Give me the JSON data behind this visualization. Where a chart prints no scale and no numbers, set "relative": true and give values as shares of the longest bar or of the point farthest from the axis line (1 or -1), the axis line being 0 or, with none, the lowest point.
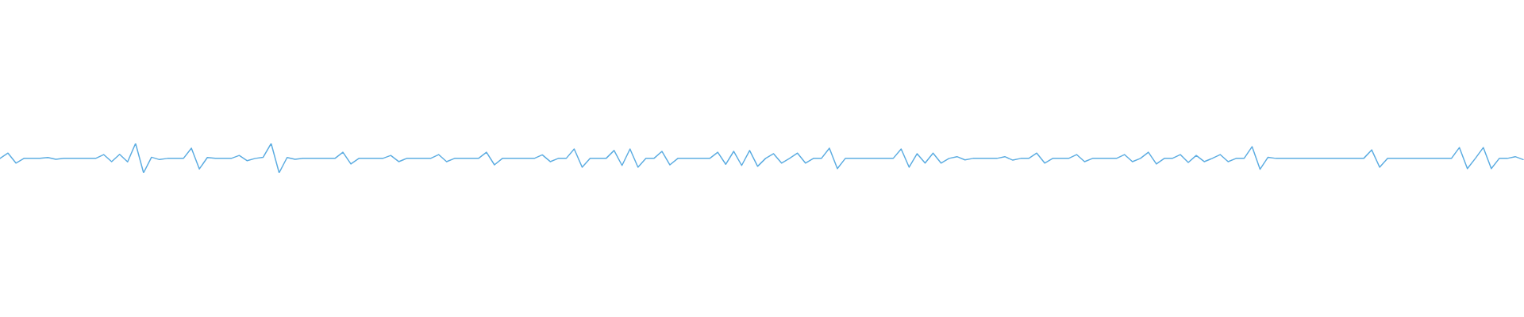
{
  "chart_data": {
    "type": "line",
    "relative": true,
    "categories": [
      null,
      null,
      null,
      null,
      null,
      null,
      null,
      null,
      null,
      null,
      null,
      null,
      null,
      null,
      null,
      null,
      null,
      null,
      null,
      null,
      null,
      null,
      null,
      null,
      null,
      null,
      null,
      null,
      null,
      null,
      null,
      null,
      null,
      null,
      null,
      null,
      null,
      null,
      null,
      null,
      null,
      null,
      null,
      null,
      null,
      null,
      null,
      null,
      null,
      null,
      null,
      null,
      null,
      null,
      null,
      null,
      null,
      null,
      null,
      null,
      null,
      null,
      null,
      null,
      null,
      null,
      null,
      null,
      null,
      null,
      null,
      null,
      null,
      null,
      null,
      null,
      null,
      null,
      null,
      null,
      null,
      null,
      null,
      null,
      null,
      null,
      null,
      null,
      null,
      null,
      null,
      null,
      null,
      null,
      null,
      null,
      null,
      null,
      null,
      null,
      null,
      null,
      null,
      null,
      null,
      null,
      null,
      null,
      null,
      null,
      null,
      null,
      null,
      null,
      null,
      null,
      null,
      null,
      null,
      null,
      null,
      null,
      null,
      null,
      null,
      null,
      null,
      null,
      null,
      null,
      null,
      null,
      null,
      null,
      null,
      null,
      null,
      null,
      null,
      null,
      null,
      null,
      null,
      null,
      null,
      null,
      null,
      null,
      null,
      null,
      null,
      null,
      null,
      null,
      null,
      null,
      null,
      null,
      null,
      null,
      null,
      null,
      null,
      null,
      null,
      null,
      null,
      null,
      null,
      null,
      null,
      null,
      null,
      null,
      null,
      null,
      null,
      null,
      null,
      null,
      null,
      null,
      null,
      null,
      null,
      null,
      null,
      null,
      null,
      null,
      null,
      null
    ],
    "series": [
      {
        "color": "#5dade2",
        "values": [
          0.49,
          0.67,
          0.33,
          0.49,
          0.49,
          0.49,
          0.52,
          0.46,
          0.49,
          0.49,
          0.49,
          0.49,
          0.49,
          0.62,
          0.38,
          0.63,
          0.37,
          1,
          0,
          0.53,
          0.45,
          0.49,
          0.49,
          0.49,
          0.84,
          0.13,
          0.52,
          0.49,
          0.49,
          0.49,
          0.59,
          0.41,
          0.49,
          0.53,
          1,
          0,
          0.52,
          0.46,
          0.49,
          0.49,
          0.49,
          0.49,
          0.49,
          0.7,
          0.3,
          0.49,
          0.49,
          0.49,
          0.49,
          0.59,
          0.38,
          0.49,
          0.49,
          0.49,
          0.49,
          0.62,
          0.38,
          0.49,
          0.49,
          0.49,
          0.49,
          0.7,
          0.27,
          0.49,
          0.49,
          0.49,
          0.49,
          0.49,
          0.61,
          0.38,
          0.49,
          0.49,
          0.81,
          0.19,
          0.49,
          0.49,
          0.49,
          0.76,
          0.25,
          0.81,
          0.19,
          0.49,
          0.49,
          0.73,
          0.27,
          0.49,
          0.49,
          0.49,
          0.49,
          0.49,
          0.7,
          0.29,
          0.73,
          0.25,
          0.76,
          0.22,
          0.49,
          0.65,
          0.33,
          0.49,
          0.67,
          0.33,
          0.49,
          0.49,
          0.84,
          0.14,
          0.49,
          0.49,
          0.49,
          0.49,
          0.49,
          0.49,
          0.49,
          0.81,
          0.19,
          0.65,
          0.33,
          0.67,
          0.33,
          0.49,
          0.55,
          0.44,
          0.49,
          0.49,
          0.49,
          0.49,
          0.55,
          0.43,
          0.49,
          0.49,
          0.67,
          0.33,
          0.49,
          0.49,
          0.49,
          0.62,
          0.38,
          0.49,
          0.49,
          0.49,
          0.49,
          0.62,
          0.38,
          0.49,
          0.7,
          0.3,
          0.49,
          0.49,
          0.62,
          0.35,
          0.59,
          0.38,
          0.49,
          0.62,
          0.38,
          0.49,
          0.49,
          0.89,
          0.12,
          0.53,
          0.49,
          0.49,
          0.49,
          0.49,
          0.49,
          0.49,
          0.49,
          0.49,
          0.49,
          0.49,
          0.49,
          0.49,
          0.78,
          0.19,
          0.49,
          0.49,
          0.49,
          0.49,
          0.49,
          0.49,
          0.49,
          0.49,
          0.49,
          0.86,
          0.14,
          0.49,
          0.86,
          0.14,
          0.49,
          0.49,
          0.55,
          0.45
        ]
      }
    ]
  }
}
